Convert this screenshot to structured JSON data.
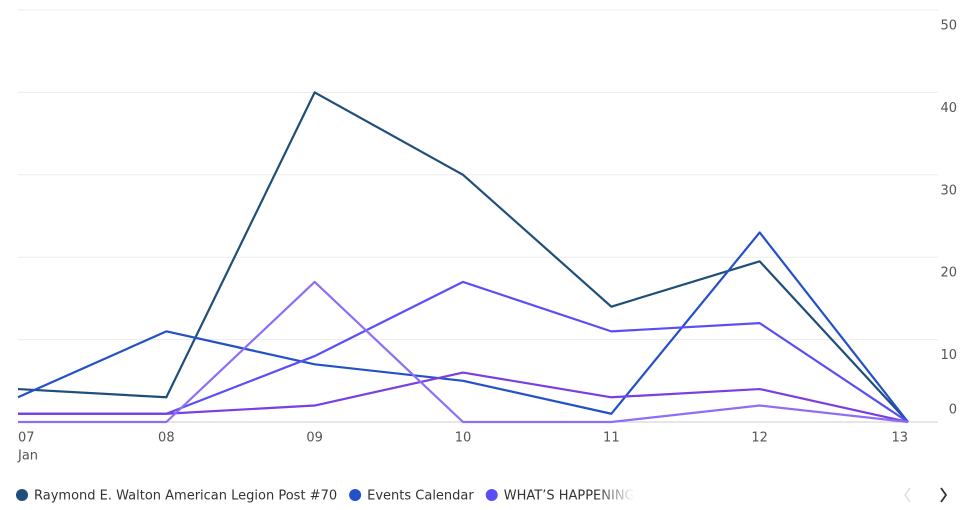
{
  "chart_data": {
    "type": "line",
    "categories": [
      "07",
      "08",
      "09",
      "10",
      "11",
      "12",
      "13"
    ],
    "month": "Jan",
    "series": [
      {
        "name": "Raymond E. Walton American Legion Post #70",
        "color": "#1f4e79",
        "values": [
          4,
          3,
          40,
          30,
          14,
          19.5,
          0
        ]
      },
      {
        "name": "Events Calendar",
        "color": "#2450c8",
        "values": [
          3,
          11,
          7,
          5,
          1,
          23,
          0
        ]
      },
      {
        "name": "WHAT’S HAPPENING",
        "color": "#5a4ff7",
        "values": [
          1,
          1,
          8,
          17,
          11,
          12,
          0
        ]
      },
      {
        "color": "#7a3fe0",
        "values": [
          1,
          1,
          2,
          6,
          3,
          4,
          0
        ]
      },
      {
        "color": "#8e6ef6",
        "values": [
          0,
          0,
          17,
          0,
          0,
          2,
          0
        ]
      }
    ],
    "legend_count": 3,
    "ylim": [
      0,
      50
    ],
    "yticks": [
      0,
      10,
      20,
      30,
      40,
      50
    ],
    "grid": true
  }
}
